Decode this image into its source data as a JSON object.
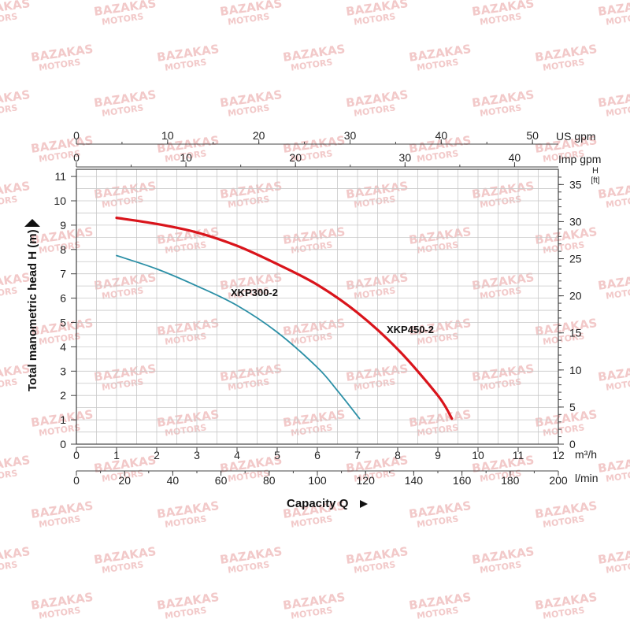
{
  "watermark": {
    "line1": "BAZAKAS",
    "line2": "MOTORS"
  },
  "chart_data": {
    "type": "line",
    "grid": true,
    "xlabel": "Capacity Q",
    "ylabel": "Total manometric head H (m)",
    "x_axis": {
      "unit": "m³/h",
      "lim": [
        0,
        12
      ],
      "ticks": [
        0,
        1,
        2,
        3,
        4,
        5,
        6,
        7,
        8,
        9,
        10,
        11,
        12
      ]
    },
    "y_axis": {
      "lim": [
        0,
        11
      ],
      "ticks": [
        0,
        1,
        2,
        3,
        4,
        5,
        6,
        7,
        8,
        9,
        10,
        11
      ]
    },
    "secondary_axes": {
      "lmin": {
        "unit": "l/min",
        "ticks": [
          0,
          20,
          40,
          60,
          80,
          100,
          120,
          140,
          160,
          180,
          200
        ]
      },
      "us_gpm": {
        "unit": "US gpm",
        "ticks": [
          0,
          10,
          20,
          30,
          40,
          50
        ]
      },
      "imp_gpm": {
        "unit": "Imp gpm",
        "ticks": [
          0,
          10,
          20,
          30,
          40
        ]
      },
      "feet": {
        "unit_top": "H",
        "unit_bottom": "[ft]",
        "ticks": [
          0,
          5,
          10,
          15,
          20,
          25,
          30,
          35
        ]
      }
    },
    "series": [
      {
        "name": "XKP300-2",
        "color": "#2b8fa6",
        "x": [
          1.0,
          2.0,
          3.0,
          4.0,
          5.0,
          6.0,
          6.5,
          7.05
        ],
        "y": [
          7.75,
          7.2,
          6.5,
          5.7,
          4.6,
          3.15,
          2.2,
          1.05
        ]
      },
      {
        "name": "XKP450-2",
        "color": "#d9141b",
        "x": [
          1.0,
          2.0,
          3.0,
          4.0,
          5.0,
          6.0,
          7.0,
          8.0,
          9.0,
          9.35
        ],
        "y": [
          9.3,
          9.05,
          8.7,
          8.15,
          7.4,
          6.55,
          5.4,
          3.9,
          2.0,
          1.05
        ]
      }
    ]
  }
}
